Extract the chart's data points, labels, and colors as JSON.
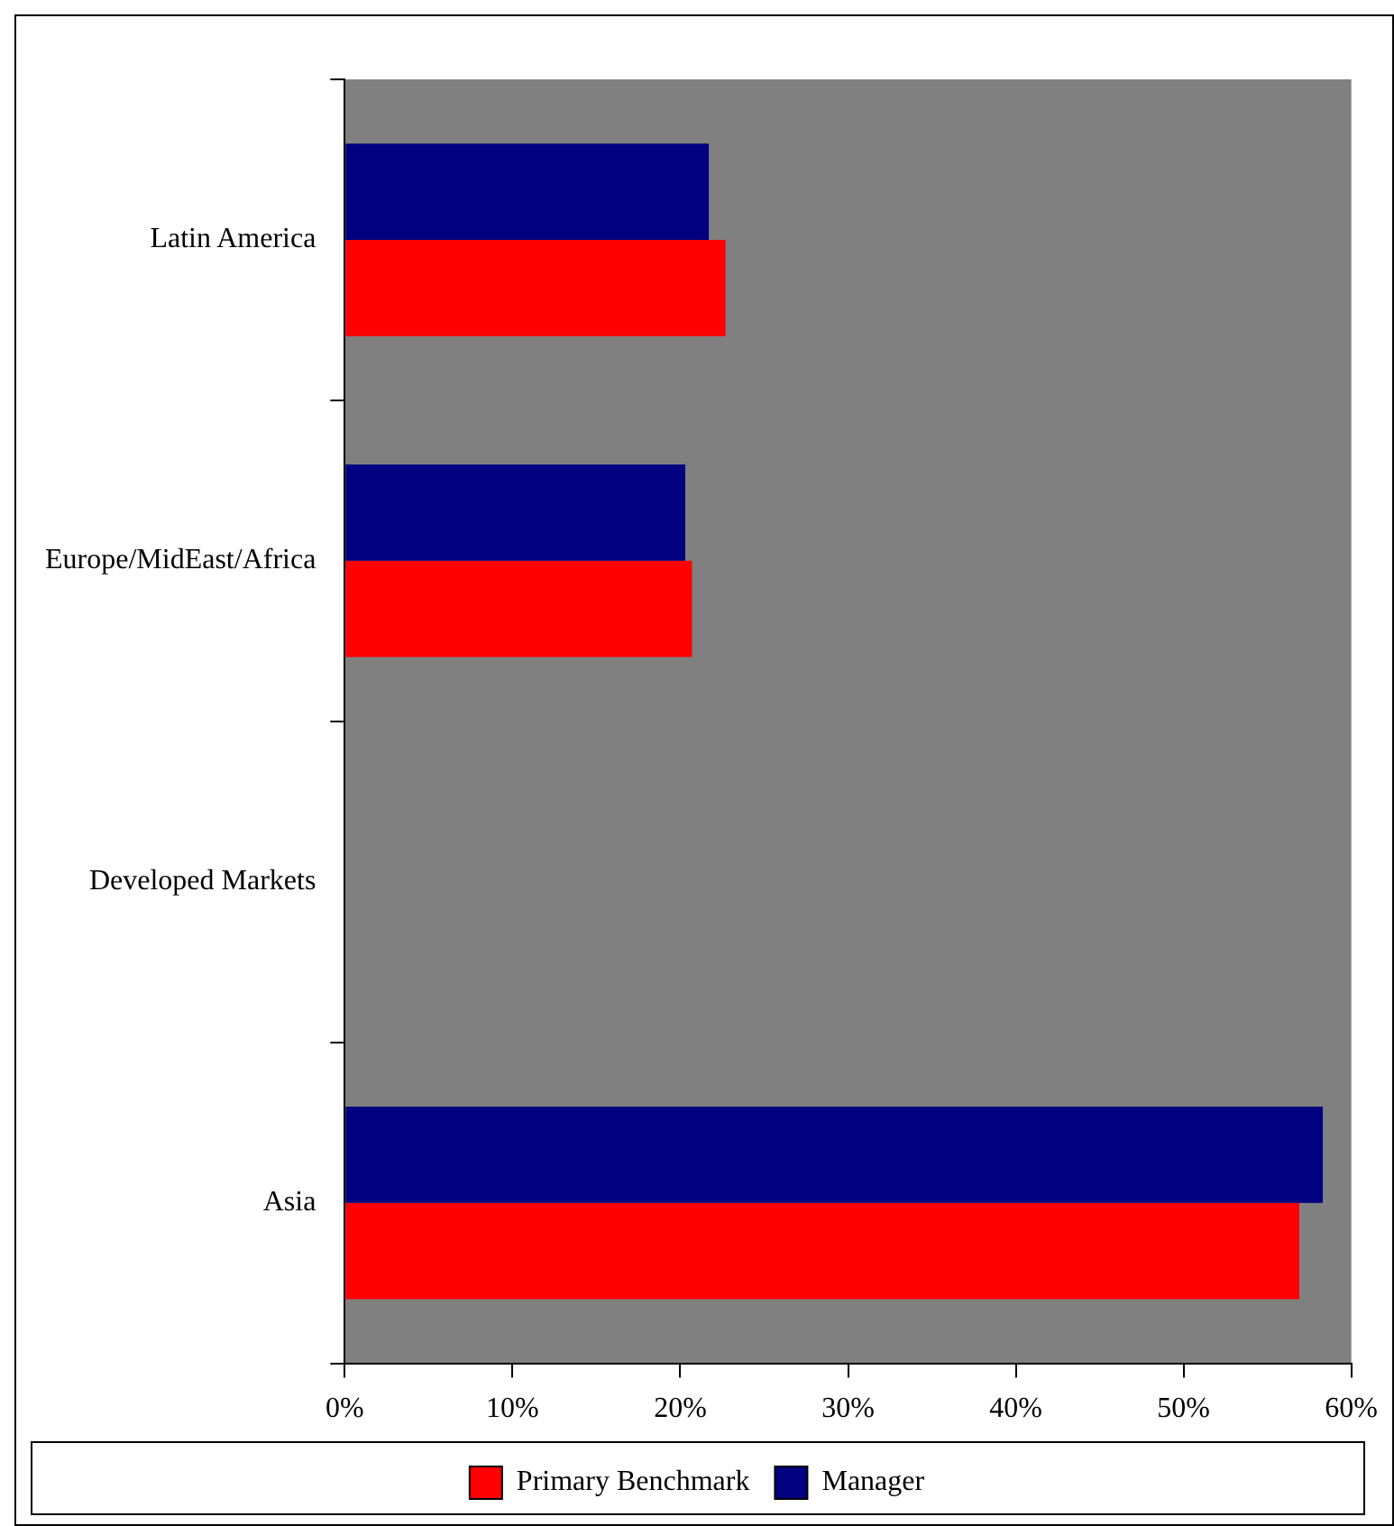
{
  "chart_data": {
    "type": "bar",
    "orientation": "horizontal",
    "categories": [
      "Latin America",
      "Europe/MidEast/Africa",
      "Developed Markets",
      "Asia"
    ],
    "series": [
      {
        "name": "Primary Benchmark",
        "color": "#ff0000",
        "values": [
          22.7,
          20.7,
          0,
          56.9
        ]
      },
      {
        "name": "Manager",
        "color": "#000080",
        "values": [
          21.7,
          20.3,
          0,
          58.3
        ]
      }
    ],
    "xlim": [
      0,
      60
    ],
    "xticks": [
      {
        "value": 0,
        "label": "0%"
      },
      {
        "value": 10,
        "label": "10%"
      },
      {
        "value": 20,
        "label": "20%"
      },
      {
        "value": 30,
        "label": "30%"
      },
      {
        "value": 40,
        "label": "40%"
      },
      {
        "value": 50,
        "label": "50%"
      },
      {
        "value": 60,
        "label": "60%"
      }
    ],
    "grid": false,
    "legend": "bottom"
  }
}
